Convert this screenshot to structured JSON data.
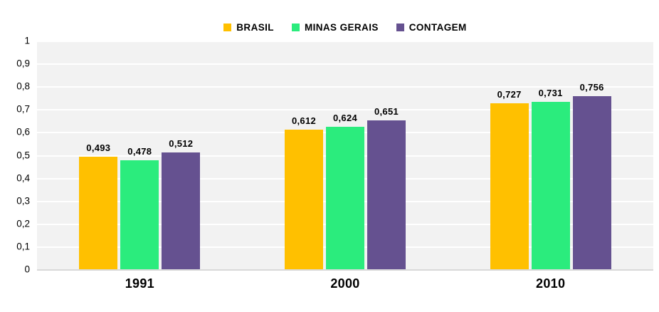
{
  "chart_data": {
    "type": "bar",
    "title": "",
    "categories": [
      "1991",
      "2000",
      "2010"
    ],
    "series": [
      {
        "name": "BRASIL",
        "color": "#FFC000",
        "values": [
          0.493,
          0.612,
          0.727
        ],
        "labels": [
          "0,493",
          "0,612",
          "0,727"
        ]
      },
      {
        "name": "MINAS GERAIS",
        "color": "#2BEC7D",
        "values": [
          0.478,
          0.624,
          0.731
        ],
        "labels": [
          "0,478",
          "0,624",
          "0,731"
        ]
      },
      {
        "name": "CONTAGEM",
        "color": "#655190",
        "values": [
          0.512,
          0.651,
          0.756
        ],
        "labels": [
          "0,512",
          "0,651",
          "0,756"
        ]
      }
    ],
    "ylim": [
      0,
      1
    ],
    "yticks": [
      {
        "label": "1",
        "value": 1.0
      },
      {
        "label": "0,9",
        "value": 0.9
      },
      {
        "label": "0,8",
        "value": 0.8
      },
      {
        "label": "0,7",
        "value": 0.7
      },
      {
        "label": "0,6",
        "value": 0.6
      },
      {
        "label": "0,5",
        "value": 0.5
      },
      {
        "label": "0,4",
        "value": 0.4
      },
      {
        "label": "0,3",
        "value": 0.3
      },
      {
        "label": "0,2",
        "value": 0.2
      },
      {
        "label": "0,1",
        "value": 0.1
      },
      {
        "label": "0",
        "value": 0.0
      }
    ],
    "decimal_separator": ",",
    "legend_position": "top-center",
    "grid": "horizontal"
  },
  "colors": {
    "plot_background": "#F2F2F2",
    "gridline": "#FFFFFF",
    "axis_line": "#D9D9D9",
    "text": "#000000"
  }
}
